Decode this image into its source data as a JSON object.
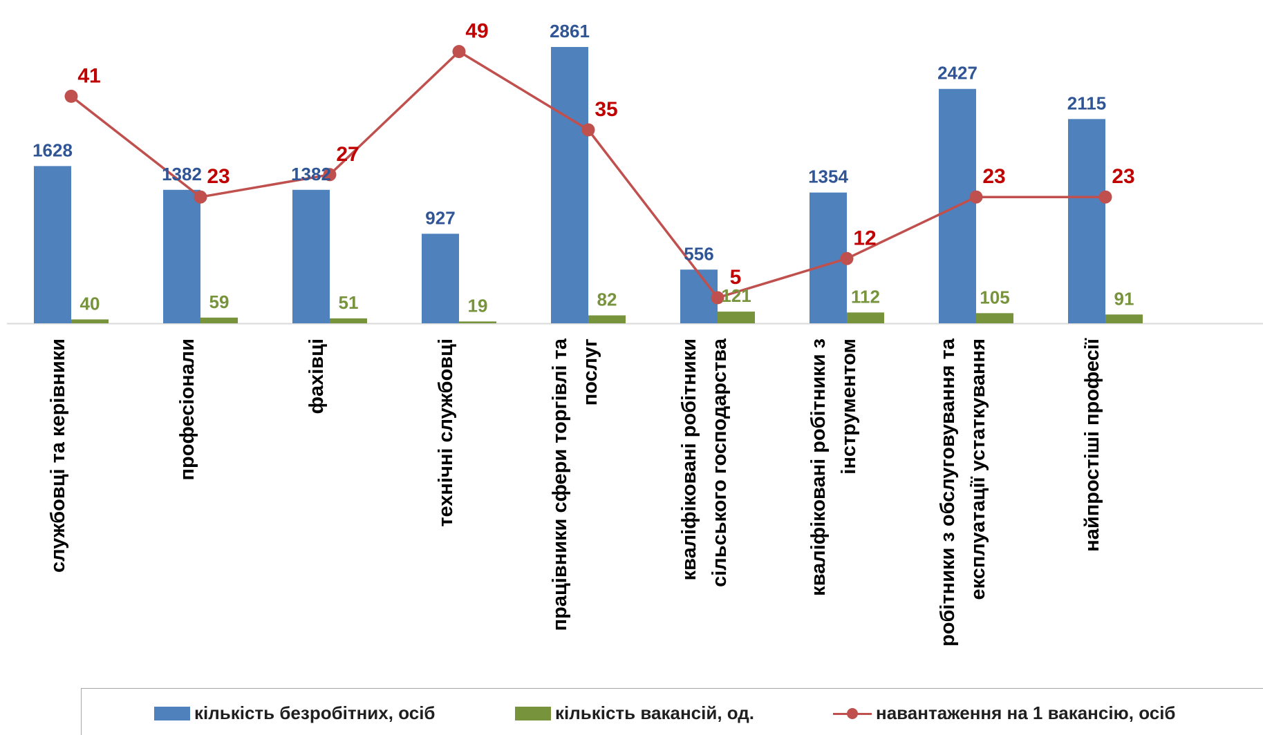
{
  "chart_data": {
    "type": "bar",
    "categories": [
      "службовці та керівники",
      "професіонали",
      "фахівці",
      "технічні службовці",
      "працівники сфери торгівлі та послуг",
      "кваліфіковані робітники сільського господарства",
      "кваліфіковані робітники з інструментом",
      "робітники з обслуговування та експлуатації устаткування",
      "найпростіші професії"
    ],
    "category_lines": [
      [
        "службовці та керівники"
      ],
      [
        "професіонали"
      ],
      [
        "фахівці"
      ],
      [
        "технічні службовці"
      ],
      [
        "працівники сфери торгівлі та",
        "послуг"
      ],
      [
        "кваліфіковані робітники",
        "сільського господарства"
      ],
      [
        "кваліфіковані робітники з",
        "інструментом"
      ],
      [
        "робітники з обслуговування та",
        "експлуатації устаткування"
      ],
      [
        "найпростіші професії"
      ]
    ],
    "series": [
      {
        "name": "кількість безробітних, осіб",
        "type": "bar",
        "color": "#4f81bd",
        "values": [
          1628,
          1382,
          1382,
          927,
          2861,
          556,
          1354,
          2427,
          2115
        ]
      },
      {
        "name": "кількість вакансій, од.",
        "type": "bar",
        "color": "#77933c",
        "values": [
          40,
          59,
          51,
          19,
          82,
          121,
          112,
          105,
          91
        ]
      },
      {
        "name": "навантаження на 1 вакансію, осіб",
        "type": "line",
        "color": "#c0504d",
        "values": [
          41,
          23,
          27,
          49,
          35,
          5,
          12,
          23,
          23
        ]
      }
    ],
    "title": "",
    "xlabel": "",
    "ylabel": "",
    "legend_position": "bottom",
    "grid": false
  }
}
